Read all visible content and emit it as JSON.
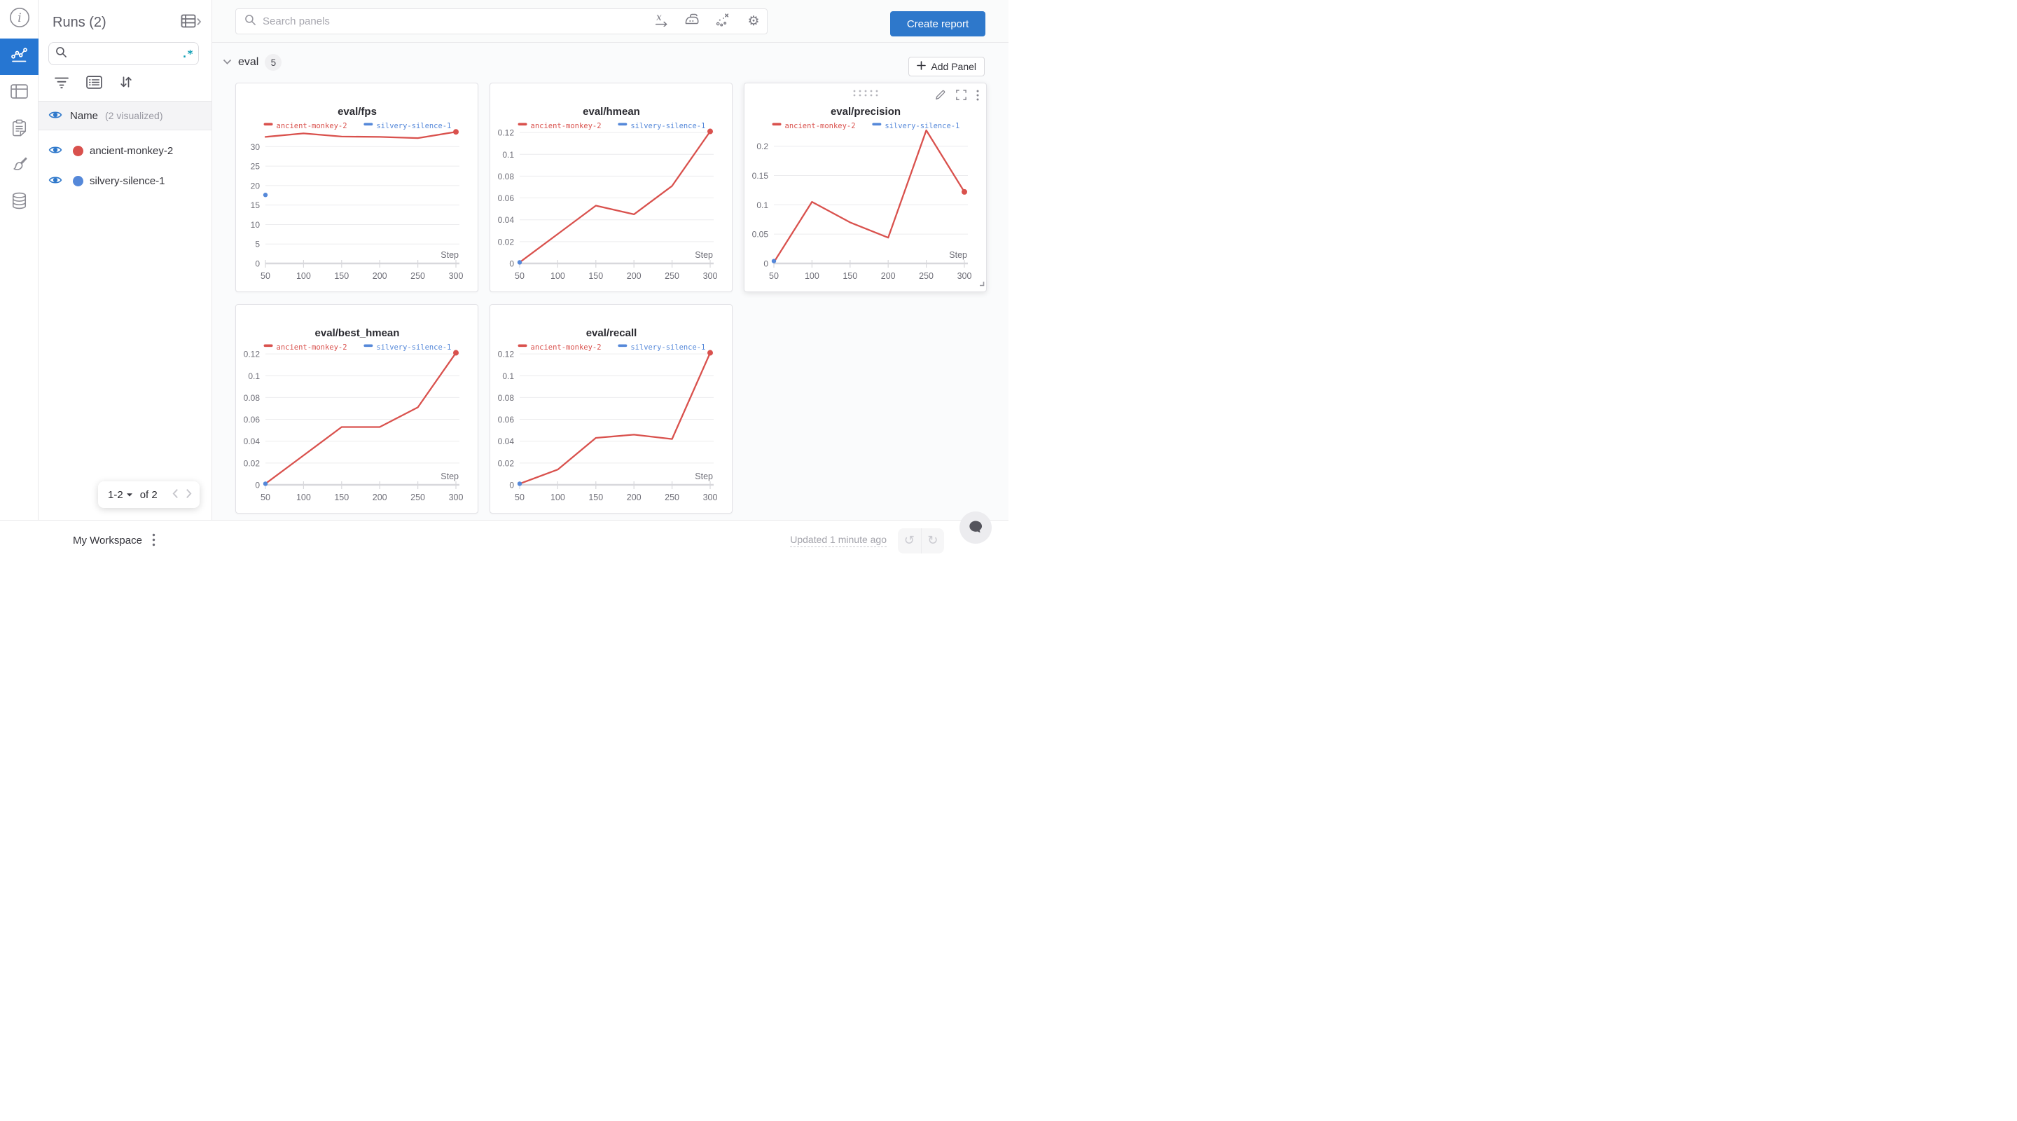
{
  "colors": {
    "accent_blue": "#2e78cb",
    "rail_active_blue": "#2676d2",
    "run_red": "#d9514d",
    "run_blue": "#5588d9",
    "regex_teal": "#0e9fb5"
  },
  "left_rail": {
    "items": [
      "overview",
      "workspace",
      "runs-table",
      "jobs",
      "sweeps",
      "artifacts"
    ],
    "active_item": "workspace"
  },
  "runs_panel": {
    "title": "Runs (2)",
    "search": {
      "value": "",
      "placeholder": "",
      "regex_label": ".*"
    },
    "name_row": {
      "label": "Name",
      "visualized": "(2 visualized)"
    },
    "runs": [
      {
        "name": "ancient-monkey-2",
        "color": "#d9514d"
      },
      {
        "name": "silvery-silence-1",
        "color": "#5588d9"
      }
    ],
    "pagination": {
      "range_label": "1-2",
      "of_label": "of 2"
    }
  },
  "topbar": {
    "search_placeholder": "Search panels",
    "create_report_label": "Create report"
  },
  "section": {
    "label": "eval",
    "count": "5",
    "add_panel_label": "Add Panel"
  },
  "footer": {
    "workspace_label": "My Workspace",
    "updated_label": "Updated 1 minute ago"
  },
  "chart_data": [
    {
      "type": "line",
      "title": "eval/fps",
      "xlabel": "Step",
      "x": [
        50,
        100,
        150,
        200,
        250,
        300
      ],
      "xticks": [
        50,
        100,
        150,
        200,
        250,
        300
      ],
      "yticks": [
        0,
        5,
        10,
        15,
        20,
        25,
        30
      ],
      "ylim": [
        0,
        34.2
      ],
      "grid": true,
      "legend_position": "top",
      "series": [
        {
          "name": "ancient-monkey-2",
          "color": "#d9514d",
          "style": "line",
          "end_marker": true,
          "values": [
            32.5,
            33.4,
            32.6,
            32.5,
            32.2,
            33.8
          ]
        },
        {
          "name": "silvery-silence-1",
          "color": "#5588d9",
          "style": "scatter",
          "values": [
            17.6,
            null,
            null,
            null,
            null,
            null
          ]
        }
      ]
    },
    {
      "type": "line",
      "title": "eval/hmean",
      "xlabel": "Step",
      "x": [
        50,
        100,
        150,
        200,
        250,
        300
      ],
      "xticks": [
        50,
        100,
        150,
        200,
        250,
        300
      ],
      "yticks": [
        0,
        0.02,
        0.04,
        0.06,
        0.08,
        0.1,
        0.12
      ],
      "ylim": [
        0,
        0.122
      ],
      "grid": true,
      "legend_position": "top",
      "series": [
        {
          "name": "ancient-monkey-2",
          "color": "#d9514d",
          "style": "line",
          "end_marker": true,
          "values": [
            0.001,
            0.027,
            0.053,
            0.045,
            0.071,
            0.121
          ]
        },
        {
          "name": "silvery-silence-1",
          "color": "#5588d9",
          "style": "scatter",
          "values": [
            0.001,
            null,
            null,
            null,
            null,
            null
          ]
        }
      ]
    },
    {
      "type": "line",
      "title": "eval/precision",
      "xlabel": "Step",
      "hovered": true,
      "x": [
        50,
        100,
        150,
        200,
        250,
        300
      ],
      "xticks": [
        50,
        100,
        150,
        200,
        250,
        300
      ],
      "yticks": [
        0,
        0.05,
        0.1,
        0.15,
        0.2
      ],
      "ylim": [
        0,
        0.227
      ],
      "grid": true,
      "legend_position": "top",
      "series": [
        {
          "name": "ancient-monkey-2",
          "color": "#d9514d",
          "style": "line",
          "end_marker": true,
          "values": [
            0.002,
            0.105,
            0.07,
            0.044,
            0.227,
            0.122
          ]
        },
        {
          "name": "silvery-silence-1",
          "color": "#5588d9",
          "style": "scatter",
          "values": [
            0.004,
            null,
            null,
            null,
            null,
            null
          ]
        }
      ]
    },
    {
      "type": "line",
      "title": "eval/best_hmean",
      "xlabel": "Step",
      "x": [
        50,
        100,
        150,
        200,
        250,
        300
      ],
      "xticks": [
        50,
        100,
        150,
        200,
        250,
        300
      ],
      "yticks": [
        0,
        0.02,
        0.04,
        0.06,
        0.08,
        0.1,
        0.12
      ],
      "ylim": [
        0,
        0.122
      ],
      "grid": true,
      "legend_position": "top",
      "series": [
        {
          "name": "ancient-monkey-2",
          "color": "#d9514d",
          "style": "line",
          "end_marker": true,
          "values": [
            0.001,
            0.027,
            0.053,
            0.053,
            0.071,
            0.121
          ]
        },
        {
          "name": "silvery-silence-1",
          "color": "#5588d9",
          "style": "scatter",
          "values": [
            0.001,
            null,
            null,
            null,
            null,
            null
          ]
        }
      ]
    },
    {
      "type": "line",
      "title": "eval/recall",
      "xlabel": "Step",
      "x": [
        50,
        100,
        150,
        200,
        250,
        300
      ],
      "xticks": [
        50,
        100,
        150,
        200,
        250,
        300
      ],
      "yticks": [
        0,
        0.02,
        0.04,
        0.06,
        0.08,
        0.1,
        0.12
      ],
      "ylim": [
        0,
        0.122
      ],
      "grid": true,
      "legend_position": "top",
      "series": [
        {
          "name": "ancient-monkey-2",
          "color": "#d9514d",
          "style": "line",
          "end_marker": true,
          "values": [
            0.001,
            0.014,
            0.043,
            0.046,
            0.042,
            0.121
          ]
        },
        {
          "name": "silvery-silence-1",
          "color": "#5588d9",
          "style": "scatter",
          "values": [
            0.001,
            null,
            null,
            null,
            null,
            null
          ]
        }
      ]
    }
  ]
}
